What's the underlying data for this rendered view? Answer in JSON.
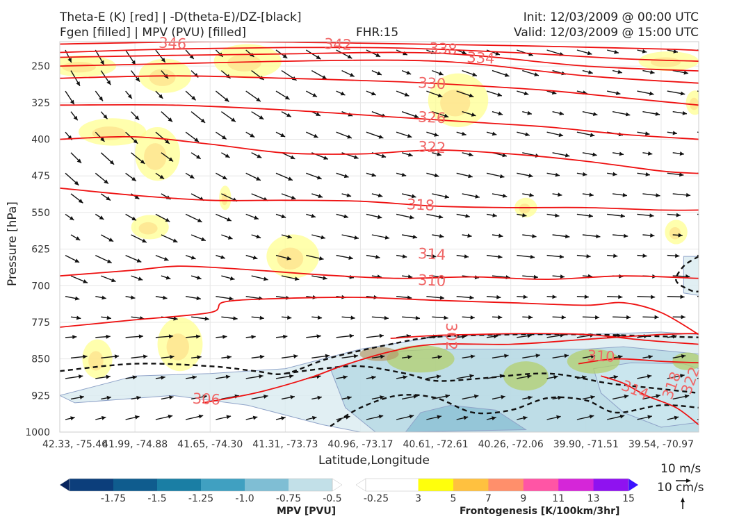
{
  "header": {
    "title_line1": "Theta-E (K) [red] | -D(theta-E)/DZ-[black]",
    "title_line2": "Fgen [filled] | MPV (PVU) [filled]",
    "fhr": "FHR:15",
    "init": "Init: 12/03/2009 @ 00:00 UTC",
    "valid": "Valid: 12/03/2009 @ 15:00 UTC"
  },
  "colors": {
    "theta_e": "#ee1111",
    "theta_e_label": "#f06666",
    "stability": "#111111",
    "fgen_low": "#ffff99",
    "mpv_light": "#cde7ee"
  },
  "chart_data": {
    "type": "cross-section",
    "ylabel": "Pressure [hPa]",
    "xlabel": "Latitude,Longitude",
    "yticks": [
      250,
      325,
      400,
      475,
      550,
      625,
      700,
      775,
      850,
      925,
      1000
    ],
    "ylim": [
      1000,
      200
    ],
    "xticks": [
      "42.33, -75.46",
      "41.99, -74.88",
      "41.65, -74.30",
      "41.31, -73.73",
      "40.96, -73.17",
      "40.61, -72.61",
      "40.26, -72.06",
      "39.90, -71.51",
      "39.54, -70.97"
    ],
    "theta_e_labels": [
      {
        "label": "346",
        "x": 1.5,
        "p": 205
      },
      {
        "label": "342",
        "x": 3.7,
        "p": 207
      },
      {
        "label": "338",
        "x": 5.1,
        "p": 216
      },
      {
        "label": "334",
        "x": 5.6,
        "p": 235
      },
      {
        "label": "330",
        "x": 4.95,
        "p": 287
      },
      {
        "label": "326",
        "x": 4.95,
        "p": 357
      },
      {
        "label": "322",
        "x": 4.95,
        "p": 418
      },
      {
        "label": "318",
        "x": 4.8,
        "p": 536
      },
      {
        "label": "314",
        "x": 4.95,
        "p": 637
      },
      {
        "label": "310",
        "x": 4.95,
        "p": 691
      },
      {
        "label": "310",
        "x": 7.2,
        "p": 846
      },
      {
        "label": "314",
        "x": 7.65,
        "p": 915
      },
      {
        "label": "306",
        "x": 1.95,
        "p": 934
      },
      {
        "label": "302",
        "x": 5.2,
        "p": 804
      },
      {
        "label": "318",
        "x": 8.15,
        "p": 905
      },
      {
        "label": "322",
        "x": 8.4,
        "p": 895
      }
    ],
    "theta_e_lines": [
      {
        "value": 346,
        "points": [
          [
            0,
            205
          ],
          [
            2,
            200
          ],
          [
            4,
            203
          ],
          [
            6,
            208
          ],
          [
            8,
            215
          ],
          [
            8.5,
            218
          ]
        ]
      },
      {
        "value": 342,
        "points": [
          [
            0,
            222
          ],
          [
            1.5,
            215
          ],
          [
            3,
            212
          ],
          [
            4.5,
            213
          ],
          [
            6,
            222
          ],
          [
            7.5,
            235
          ],
          [
            8.5,
            240
          ]
        ]
      },
      {
        "value": 338,
        "points": [
          [
            0,
            232
          ],
          [
            1.5,
            228
          ],
          [
            3,
            225
          ],
          [
            4.5,
            222
          ],
          [
            5.5,
            228
          ],
          [
            7,
            250
          ],
          [
            8.5,
            260
          ]
        ]
      },
      {
        "value": 334,
        "points": [
          [
            0,
            250
          ],
          [
            1.5,
            245
          ],
          [
            3,
            240
          ],
          [
            4.5,
            238
          ],
          [
            5.5,
            245
          ],
          [
            7,
            270
          ],
          [
            8.5,
            285
          ]
        ]
      },
      {
        "value": 330,
        "points": [
          [
            0,
            275
          ],
          [
            1.5,
            270
          ],
          [
            3,
            275
          ],
          [
            4.5,
            282
          ],
          [
            5.5,
            290
          ],
          [
            6.5,
            300
          ],
          [
            7.5,
            315
          ],
          [
            8.5,
            330
          ]
        ]
      },
      {
        "value": 326,
        "points": [
          [
            0,
            330
          ],
          [
            1.5,
            330
          ],
          [
            3,
            340
          ],
          [
            4.5,
            355
          ],
          [
            5.5,
            365
          ],
          [
            6.5,
            375
          ],
          [
            7.5,
            390
          ],
          [
            8.5,
            400
          ]
        ]
      },
      {
        "value": 322,
        "points": [
          [
            0,
            400
          ],
          [
            1,
            395
          ],
          [
            2,
            410
          ],
          [
            3,
            428
          ],
          [
            4,
            430
          ],
          [
            5,
            422
          ],
          [
            6,
            430
          ],
          [
            7,
            445
          ],
          [
            8,
            465
          ],
          [
            8.5,
            470
          ]
        ]
      },
      {
        "value": 318,
        "points": [
          [
            0,
            500
          ],
          [
            1,
            515
          ],
          [
            2,
            525
          ],
          [
            3,
            525
          ],
          [
            4,
            527
          ],
          [
            5,
            537
          ],
          [
            6,
            540
          ],
          [
            7,
            540
          ],
          [
            8,
            545
          ],
          [
            8.5,
            545
          ]
        ]
      },
      {
        "value": 314,
        "points": [
          [
            0,
            680
          ],
          [
            1,
            668
          ],
          [
            1.6,
            660
          ],
          [
            2.5,
            667
          ],
          [
            3.5,
            678
          ],
          [
            4.5,
            685
          ],
          [
            5.5,
            682
          ],
          [
            6.5,
            687
          ],
          [
            7.5,
            680
          ],
          [
            8.5,
            685
          ]
        ]
      },
      {
        "value": 310,
        "points": [
          [
            0,
            785
          ],
          [
            1,
            770
          ],
          [
            2,
            755
          ],
          [
            2.2,
            733
          ],
          [
            3,
            726
          ],
          [
            4,
            724
          ],
          [
            5,
            730
          ],
          [
            6,
            735
          ],
          [
            7,
            740
          ],
          [
            7.5,
            735
          ],
          [
            8,
            755
          ],
          [
            8.5,
            800
          ]
        ]
      },
      {
        "value": 306,
        "points": [
          [
            1.9,
            940
          ],
          [
            2.6,
            920
          ],
          [
            3.3,
            890
          ],
          [
            3.8,
            862
          ],
          [
            4.4,
            835
          ],
          [
            5,
            820
          ],
          [
            6,
            820
          ],
          [
            7,
            810
          ],
          [
            8,
            800
          ],
          [
            8.5,
            798
          ]
        ]
      },
      {
        "value": 302,
        "points": [
          [
            4.4,
            808
          ],
          [
            5,
            802
          ],
          [
            5.5,
            800
          ],
          [
            6.2,
            798
          ],
          [
            7,
            800
          ],
          [
            7.8,
            812
          ],
          [
            8.5,
            820
          ]
        ]
      },
      {
        "value": 310,
        "points": [
          [
            6.9,
            860
          ],
          [
            7.4,
            850
          ],
          [
            8,
            855
          ],
          [
            8.5,
            858
          ]
        ]
      },
      {
        "value": 314,
        "points": [
          [
            7.2,
            885
          ],
          [
            7.5,
            900
          ],
          [
            7.8,
            925
          ],
          [
            8.2,
            950
          ],
          [
            8.5,
            985
          ]
        ]
      }
    ],
    "stability_lines": [
      {
        "points": [
          [
            0,
            875
          ],
          [
            1,
            860
          ],
          [
            2,
            865
          ],
          [
            2.6,
            875
          ],
          [
            3,
            880
          ],
          [
            3.6,
            848
          ],
          [
            4.4,
            820
          ],
          [
            5,
            805
          ],
          [
            6,
            800
          ],
          [
            7,
            800
          ],
          [
            7.8,
            803
          ],
          [
            8.5,
            806
          ]
        ]
      },
      {
        "points": [
          [
            3,
            880
          ],
          [
            3.5,
            870
          ],
          [
            4,
            865
          ],
          [
            4.6,
            880
          ],
          [
            5,
            895
          ],
          [
            5.6,
            890
          ],
          [
            6.5,
            880
          ],
          [
            7.3,
            900
          ],
          [
            7.9,
            910
          ],
          [
            8.5,
            920
          ]
        ]
      },
      {
        "points": [
          [
            3.6,
            988
          ],
          [
            4,
            950
          ],
          [
            4.5,
            925
          ],
          [
            5,
            930
          ],
          [
            5.5,
            960
          ],
          [
            6,
            955
          ],
          [
            6.5,
            930
          ],
          [
            7,
            935
          ],
          [
            7.4,
            960
          ],
          [
            8,
            945
          ],
          [
            8.5,
            950
          ]
        ]
      },
      {
        "points": [
          [
            8.5,
            640
          ],
          [
            8.3,
            660
          ],
          [
            8.2,
            690
          ],
          [
            8.4,
            710
          ],
          [
            8.5,
            712
          ]
        ]
      }
    ],
    "fgen_patches": [
      {
        "x": 0.3,
        "p": 250,
        "rx": 0.45,
        "ry": 22,
        "level": 3
      },
      {
        "x": 1.4,
        "p": 270,
        "rx": 0.35,
        "ry": 35,
        "level": 3
      },
      {
        "x": 2.5,
        "p": 240,
        "rx": 0.45,
        "ry": 35,
        "level": 3
      },
      {
        "x": 0.7,
        "p": 385,
        "rx": 0.45,
        "ry": 28,
        "level": 3
      },
      {
        "x": 1.3,
        "p": 430,
        "rx": 0.3,
        "ry": 55,
        "level": 3
      },
      {
        "x": 1.2,
        "p": 580,
        "rx": 0.25,
        "ry": 25,
        "level": 3
      },
      {
        "x": 2.2,
        "p": 520,
        "rx": 0.08,
        "ry": 25,
        "level": 3
      },
      {
        "x": 3.1,
        "p": 640,
        "rx": 0.35,
        "ry": 45,
        "level": 3
      },
      {
        "x": 1.6,
        "p": 820,
        "rx": 0.3,
        "ry": 55,
        "level": 3
      },
      {
        "x": 0.5,
        "p": 850,
        "rx": 0.2,
        "ry": 40,
        "level": 3
      },
      {
        "x": 5.3,
        "p": 320,
        "rx": 0.4,
        "ry": 55,
        "level": 3
      },
      {
        "x": 8.1,
        "p": 240,
        "rx": 0.4,
        "ry": 20,
        "level": 3
      },
      {
        "x": 8.45,
        "p": 325,
        "rx": 0.12,
        "ry": 25,
        "level": 3
      },
      {
        "x": 8.2,
        "p": 590,
        "rx": 0.15,
        "ry": 25,
        "level": 3
      },
      {
        "x": 6.2,
        "p": 540,
        "rx": 0.15,
        "ry": 20,
        "level": 3
      }
    ],
    "mpv_regions": [
      {
        "points": [
          [
            0,
            925
          ],
          [
            1,
            885
          ],
          [
            2,
            880
          ],
          [
            3,
            870
          ],
          [
            4,
            830
          ],
          [
            5,
            805
          ],
          [
            6,
            800
          ],
          [
            7,
            800
          ],
          [
            8,
            795
          ],
          [
            8.5,
            800
          ],
          [
            8.5,
            1000
          ],
          [
            4,
            1000
          ],
          [
            3.5,
            985
          ],
          [
            2.5,
            945
          ],
          [
            1.5,
            925
          ],
          [
            0.2,
            940
          ]
        ],
        "level": -0.25
      },
      {
        "points": [
          [
            3.6,
            870
          ],
          [
            4.4,
            835
          ],
          [
            5,
            830
          ],
          [
            6,
            830
          ],
          [
            7,
            830
          ],
          [
            7.5,
            825
          ],
          [
            8.5,
            840
          ],
          [
            8.5,
            1000
          ],
          [
            4.2,
            1000
          ],
          [
            3.8,
            950
          ]
        ],
        "level": -0.5
      },
      {
        "points": [
          [
            4.6,
            1000
          ],
          [
            4.8,
            960
          ],
          [
            5.2,
            945
          ],
          [
            5.8,
            955
          ],
          [
            6.2,
            995
          ]
        ],
        "level": -0.75
      },
      {
        "points": [
          [
            7.1,
            870
          ],
          [
            7.6,
            858
          ],
          [
            8.3,
            860
          ],
          [
            8.5,
            870
          ],
          [
            8.5,
            980
          ],
          [
            8,
            990
          ],
          [
            7.5,
            960
          ],
          [
            7.2,
            920
          ]
        ],
        "level": -1.0
      },
      {
        "points": [
          [
            8.3,
            640
          ],
          [
            8.5,
            640
          ],
          [
            8.5,
            720
          ],
          [
            8.3,
            715
          ]
        ],
        "level": -0.25
      }
    ],
    "colorbar_mpv": {
      "label": "MPV [PVU]",
      "ticks": [
        "-1.75",
        "-1.5",
        "-1.25",
        "-1.0",
        "-0.75",
        "-0.5",
        "-0.25"
      ],
      "colors": [
        "#08255e",
        "#0c3e7b",
        "#0f5c8e",
        "#1a7ea4",
        "#40a0c1",
        "#7fbed4",
        "#c2e0e8",
        "#ffffff"
      ]
    },
    "colorbar_fgen": {
      "label": "Frontogenesis [K/100km/3hr]",
      "ticks": [
        "3",
        "5",
        "7",
        "9",
        "11",
        "13",
        "15"
      ],
      "colors": [
        "#ffffff",
        "#ffff0c",
        "#ffc13f",
        "#ff8f6b",
        "#ff55a5",
        "#d526d8",
        "#8f12f0",
        "#3b12ff"
      ]
    }
  },
  "legend": {
    "wind_ref": "10 m/s",
    "vert_ref": "10 cm/s"
  }
}
